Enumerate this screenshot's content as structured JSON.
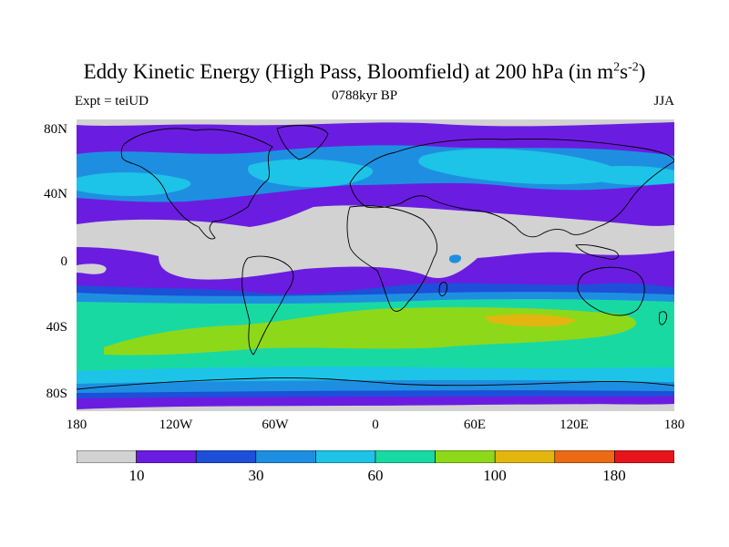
{
  "title_main": "Eddy Kinetic Energy (High Pass, Bloomfield) at 200 hPa (in m",
  "title_sup1": "2",
  "title_mid": "s",
  "title_sup2": "-2",
  "title_end": ")",
  "subtitle": "0788kyr BP",
  "left_label": "Expt = teiUD",
  "right_label": "JJA",
  "lat_ticks": [
    "80N",
    "40N",
    "0",
    "40S",
    "80S"
  ],
  "lon_ticks": [
    "180",
    "120W",
    "60W",
    "0",
    "60E",
    "120E",
    "180"
  ],
  "colorbar": {
    "colors": [
      "#d2d2d2",
      "#6a1de0",
      "#1d4fd8",
      "#1e8fe0",
      "#1ec3e8",
      "#19d9a3",
      "#8ed81a",
      "#e3b50f",
      "#ec6a13",
      "#e8141b"
    ],
    "labels": [
      "10",
      "30",
      "60",
      "100",
      "180"
    ]
  }
}
